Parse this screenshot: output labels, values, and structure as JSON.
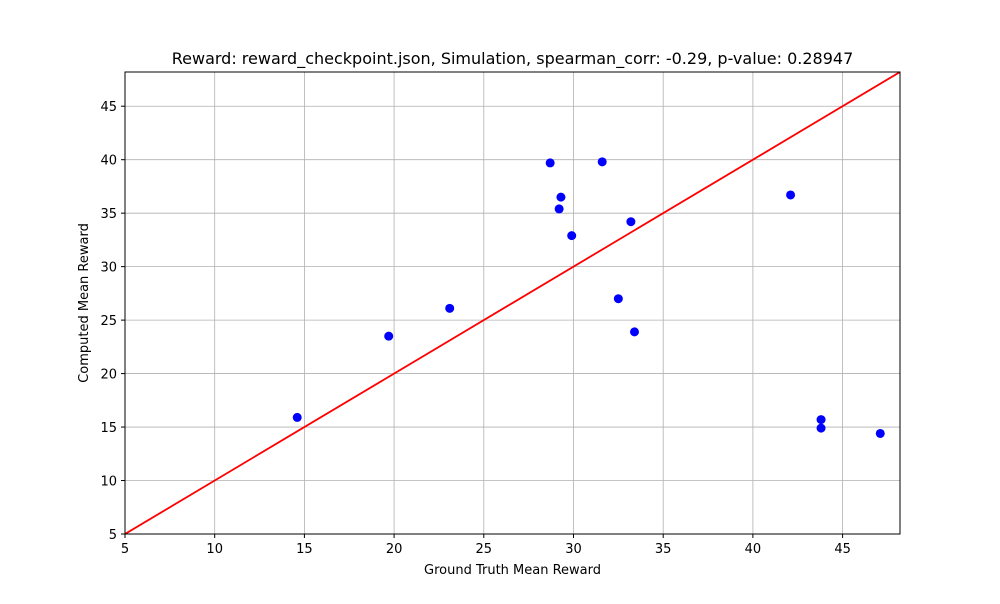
{
  "chart_data": {
    "type": "scatter",
    "title": "Reward: reward_checkpoint.json, Simulation, spearman_corr: -0.29, p-value: 0.28947",
    "xlabel": "Ground Truth Mean Reward",
    "ylabel": "Computed Mean Reward",
    "xlim": [
      5,
      48.2
    ],
    "ylim": [
      5,
      48.2
    ],
    "x_ticks": [
      5,
      10,
      15,
      20,
      25,
      30,
      35,
      40,
      45
    ],
    "y_ticks": [
      5,
      10,
      15,
      20,
      25,
      30,
      35,
      40,
      45
    ],
    "grid": true,
    "point_color": "#0000ff",
    "line_color": "#ff0000",
    "reference_line": {
      "x": [
        5,
        48.2
      ],
      "y": [
        5,
        48.2
      ]
    },
    "points": [
      {
        "x": 14.6,
        "y": 15.9
      },
      {
        "x": 19.7,
        "y": 23.5
      },
      {
        "x": 23.1,
        "y": 26.1
      },
      {
        "x": 28.7,
        "y": 39.7
      },
      {
        "x": 29.3,
        "y": 36.5
      },
      {
        "x": 29.2,
        "y": 35.4
      },
      {
        "x": 29.9,
        "y": 32.9
      },
      {
        "x": 31.6,
        "y": 39.8
      },
      {
        "x": 33.2,
        "y": 34.2
      },
      {
        "x": 32.5,
        "y": 27.0
      },
      {
        "x": 33.4,
        "y": 23.9
      },
      {
        "x": 42.1,
        "y": 36.7
      },
      {
        "x": 43.8,
        "y": 15.7
      },
      {
        "x": 43.8,
        "y": 14.9
      },
      {
        "x": 47.1,
        "y": 14.4
      }
    ]
  }
}
